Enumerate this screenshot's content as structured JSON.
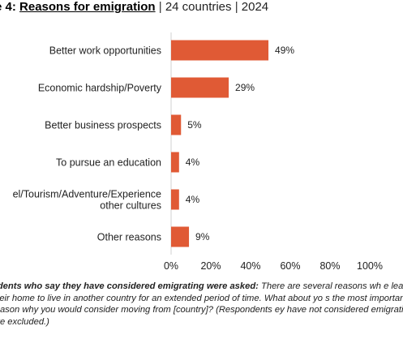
{
  "figure": {
    "label": "e 4:",
    "title": "Reasons for emigration",
    "sep1": " | ",
    "scope": "24 countries",
    "sep2": " | ",
    "year": "2024"
  },
  "chart_data": {
    "type": "bar",
    "orientation": "horizontal",
    "title": "Reasons for emigration",
    "categories": [
      [
        "Better work opportunities"
      ],
      [
        "Economic hardship/Poverty"
      ],
      [
        "Better business prospects"
      ],
      [
        "To pursue an education"
      ],
      [
        "el/Tourism/Adventure/Experience",
        "other cultures"
      ],
      [
        "Other reasons"
      ]
    ],
    "values": [
      49,
      29,
      5,
      4,
      4,
      9
    ],
    "value_labels": [
      "49%",
      "29%",
      "5%",
      "4%",
      "4%",
      "9%"
    ],
    "xlim": [
      0,
      100
    ],
    "x_ticks": [
      "0%",
      "20%",
      "40%",
      "60%",
      "80%",
      "100%"
    ],
    "bar_color": "#e05a35",
    "grid": false
  },
  "note": {
    "lead": "ndents who say they have considered emigrating were asked:",
    "text": " There are several reasons wh e leave their home to live in another country for an extended period of time. What about yo s the most important reason why you would consider moving from [country]? (Respondents ey have not considered emigrating are excluded.)"
  }
}
